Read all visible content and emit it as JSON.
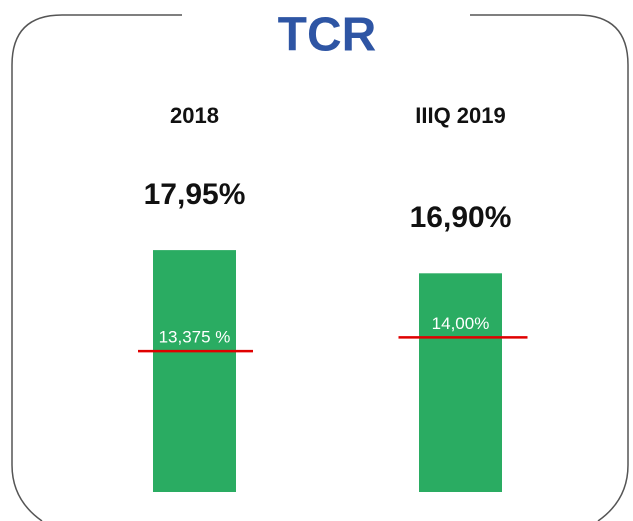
{
  "chart_data": {
    "type": "bar",
    "title": "TCR",
    "categories": [
      "2018",
      "IIIQ 2019"
    ],
    "values": [
      17.95,
      16.9
    ],
    "value_labels": [
      "17,95%",
      "16,90%"
    ],
    "color": "#2aac62",
    "ylim": [
      7,
      18
    ],
    "thresholds": {
      "values": [
        13.375,
        14.0
      ],
      "labels": [
        "13,375 %",
        "14,00%"
      ],
      "color": "#e00000"
    }
  }
}
